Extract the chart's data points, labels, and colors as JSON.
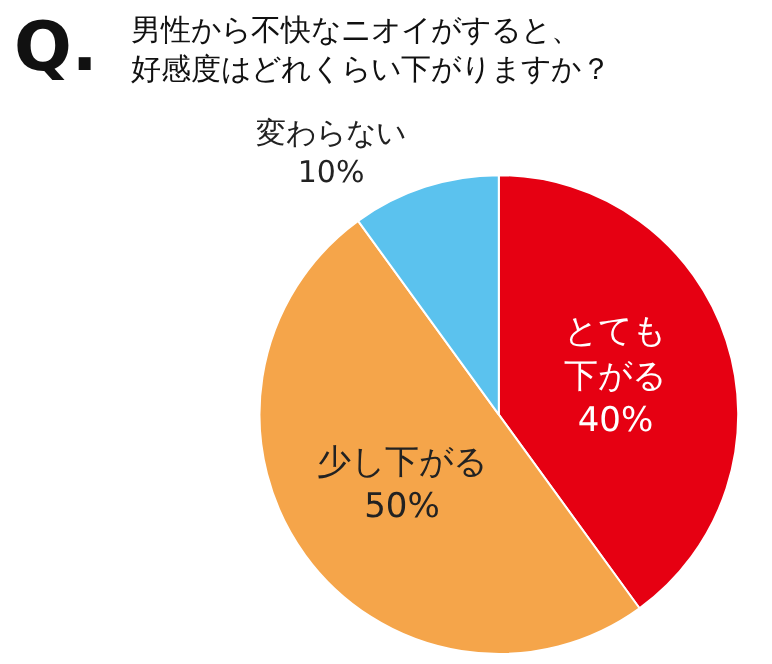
{
  "chart_data": {
    "type": "pie",
    "title": "男性から不快なニオイがすると、好感度はどれくらい下がりますか？",
    "annotations": [
      "Q."
    ],
    "categories": [
      "とても下がる",
      "少し下がる",
      "変わらない"
    ],
    "values": [
      40,
      50,
      10
    ],
    "value_labels": [
      "40%",
      "50%",
      "10%"
    ],
    "colors": [
      "#e60012",
      "#f5a54a",
      "#5bc2ee"
    ],
    "legend": false
  }
}
